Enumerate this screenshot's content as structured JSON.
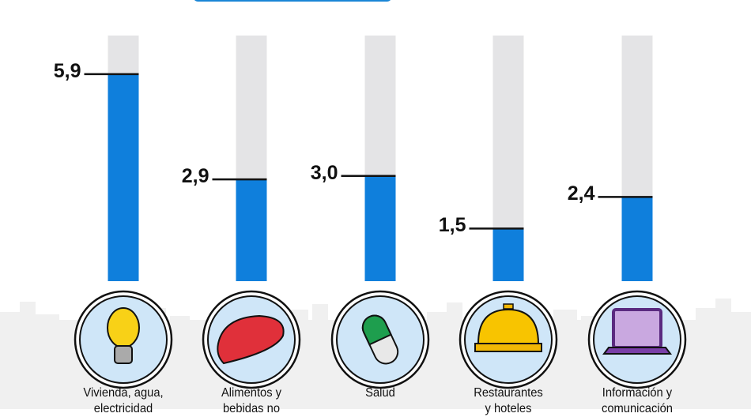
{
  "chart_data": {
    "type": "bar",
    "categories": [
      [
        "Vivienda, agua,",
        "electricidad"
      ],
      [
        "Alimentos y",
        "bebidas no"
      ],
      [
        "Salud"
      ],
      [
        "Restaurantes",
        "y hoteles"
      ],
      [
        "Información y",
        "comunicación"
      ]
    ],
    "values": [
      5.9,
      2.9,
      3.0,
      1.5,
      2.4
    ],
    "value_labels": [
      "5,9",
      "2,9",
      "3,0",
      "1,5",
      "2,4"
    ],
    "icons": [
      "light-bulb-icon",
      "meat-steak-icon",
      "pill-capsule-icon",
      "service-bell-icon",
      "laptop-icon"
    ],
    "ylim": [
      0,
      7
    ],
    "grid": false,
    "colors": {
      "bar": "#0f7fdc",
      "track": "#e4e4e6",
      "icon_bg": "#cfe6f8",
      "skyline": "#f0f0f0",
      "banner": "#1a86d6"
    }
  }
}
